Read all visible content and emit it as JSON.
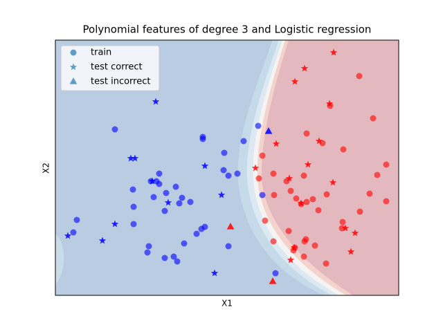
{
  "chart_data": {
    "type": "scatter",
    "title": "Polynomial features of degree 3 and Logistic regression",
    "x_label": "X1",
    "y_label": "X2",
    "xlim": [
      0,
      496
    ],
    "ylim": [
      0,
      369
    ],
    "class_colors": [
      "#0000ff",
      "#ff0000"
    ],
    "legend": "upper left",
    "series": [
      {
        "name": "train",
        "marker": "circle",
        "color": "#1f77b4",
        "x": [
          86,
          213,
          213,
          244,
          272,
          293,
          243,
          250,
          263,
          150,
          138,
          146,
          150,
          160,
          174,
          183,
          179,
          195,
          142,
          158,
          112,
          113,
          113,
          31,
          26,
          135,
          133,
          158,
          171,
          176,
          186,
          204,
          211,
          216,
          250,
          318,
          299,
          439,
          397,
          459,
          363,
          386,
          416,
          299,
          478,
          465,
          315,
          359,
          294,
          334,
          316,
          340,
          392,
          454,
          478,
          348,
          363,
          372,
          355,
          380,
          440,
          303,
          415,
          414,
          337,
          362,
          360,
          315,
          375,
          346,
          344,
          359,
          391
        ],
        "y": [
          240,
          229,
          226,
          206,
          223,
          245,
          181,
          173,
          176,
          176,
          165,
          165,
          161,
          148,
          157,
          141,
          133,
          135,
          142,
          122,
          153,
          128,
          103,
          109,
          91,
          71,
          62,
          54,
          56,
          49,
          75,
          89,
          96,
          99,
          71,
          32,
          145,
          317,
          274,
          256,
          234,
          220,
          211,
          202,
          189,
          174,
          176,
          173,
          169,
          165,
          145,
          151,
          146,
          147,
          136,
          140,
          135,
          139,
          132,
          123,
          121,
          108,
          106,
          97,
          93,
          81,
          78,
          78,
          72,
          69,
          65,
          56,
          46
        ],
        "class": [
          0,
          0,
          0,
          0,
          0,
          0,
          0,
          0,
          0,
          0,
          0,
          0,
          0,
          0,
          0,
          0,
          0,
          0,
          0,
          0,
          0,
          0,
          0,
          0,
          0,
          0,
          0,
          0,
          0,
          0,
          0,
          0,
          0,
          0,
          0,
          0,
          0,
          1,
          1,
          1,
          1,
          1,
          1,
          1,
          1,
          1,
          1,
          1,
          1,
          1,
          1,
          1,
          1,
          1,
          1,
          1,
          1,
          1,
          1,
          1,
          1,
          1,
          1,
          1,
          1,
          1,
          1,
          1,
          1,
          1,
          1,
          1,
          1
        ]
      },
      {
        "name": "test correct",
        "marker": "star",
        "color": "#1f77b4",
        "x": [
          145,
          109,
          115,
          216,
          240,
          163,
          86,
          18,
          68,
          230,
          140,
          402,
          360,
          346,
          396,
          319,
          381,
          289,
          365,
          338,
          401,
          355,
          419,
          433,
          345,
          427,
          340
        ],
        "y": [
          280,
          198,
          198,
          187,
          145,
          134,
          103,
          86,
          79,
          32,
          165,
          351,
          328,
          309,
          277,
          219,
          223,
          184,
          189,
          169,
          163,
          133,
          97,
          90,
          69,
          63,
          51
        ],
        "class": [
          0,
          0,
          0,
          0,
          0,
          0,
          0,
          0,
          0,
          0,
          0,
          1,
          1,
          1,
          1,
          1,
          1,
          1,
          1,
          1,
          1,
          1,
          1,
          1,
          1,
          1,
          1
        ]
      },
      {
        "name": "test incorrect",
        "marker": "triangle",
        "color": "#1f77b4",
        "x": [
          308,
          253,
          314
        ],
        "y": [
          237,
          99,
          20
        ],
        "class": [
          0,
          1,
          1
        ]
      }
    ]
  }
}
